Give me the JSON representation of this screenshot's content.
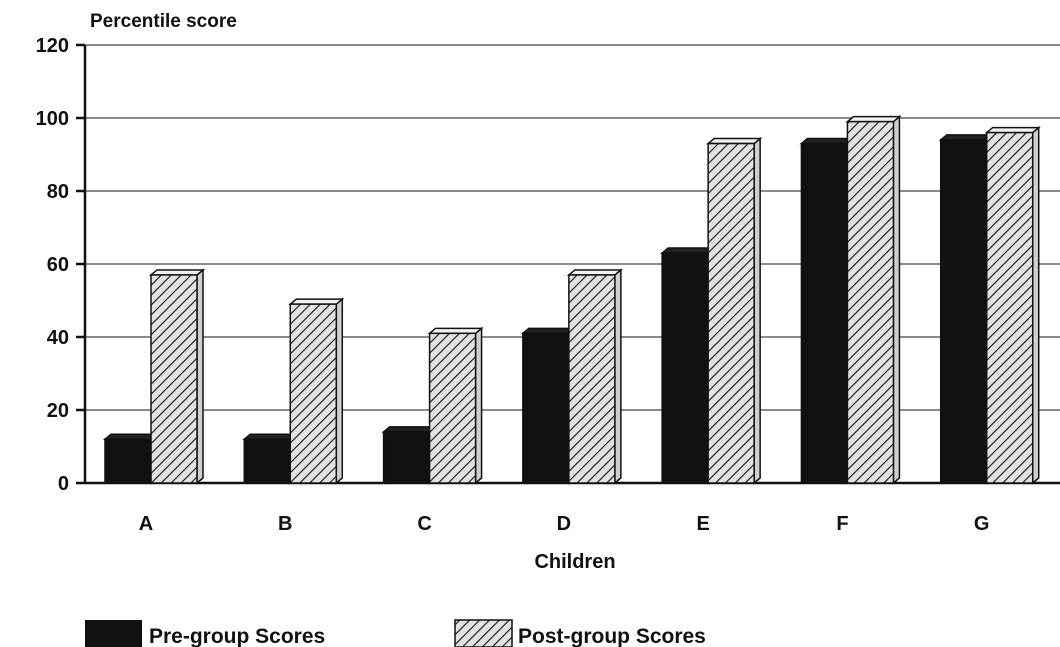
{
  "chart_data": {
    "type": "bar",
    "title": "",
    "ylabel": "Percentile score",
    "xlabel": "Children",
    "categories": [
      "A",
      "B",
      "C",
      "D",
      "E",
      "F",
      "G"
    ],
    "series": [
      {
        "name": "Pre-group Scores",
        "values": [
          12,
          12,
          14,
          41,
          63,
          93,
          94
        ],
        "style": "solid",
        "color": "#111111"
      },
      {
        "name": "Post-group Scores",
        "values": [
          57,
          49,
          41,
          57,
          93,
          99,
          96
        ],
        "style": "hatched",
        "color": "#d9d9d9"
      }
    ],
    "ylim": [
      0,
      120
    ],
    "yticks": [
      "0",
      "20",
      "40",
      "60",
      "80",
      "100",
      "120"
    ],
    "grid": true,
    "legend_position": "bottom-left"
  }
}
